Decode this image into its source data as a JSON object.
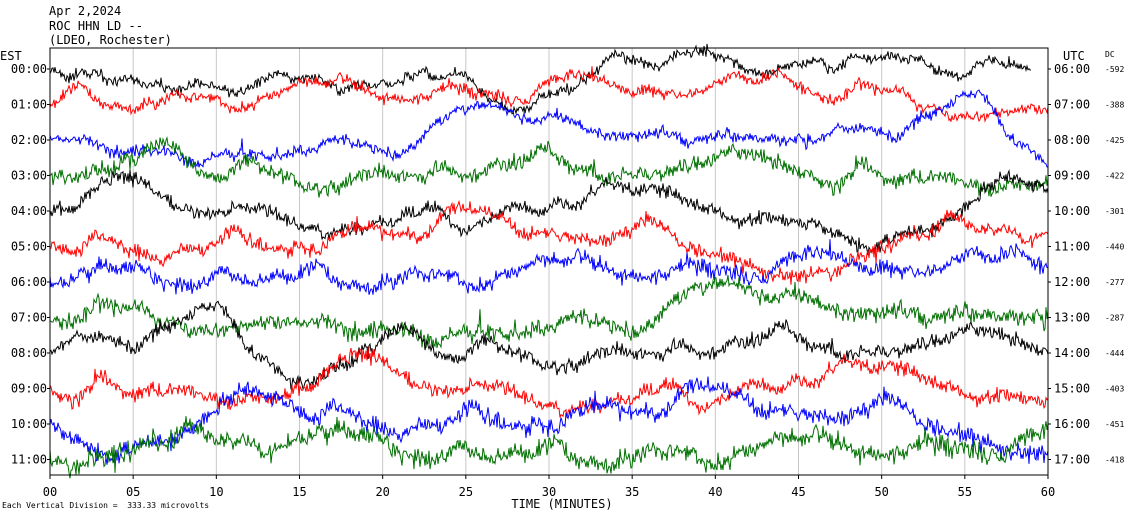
{
  "header": {
    "date": "Apr 2,2024",
    "station": "ROC HHN LD --",
    "network": "(LDEO, Rochester)"
  },
  "footer": {
    "scale_note": "Each Vertical Division =  333.33 microvolts"
  },
  "chart_data": {
    "type": "line",
    "title": "Apr 2,2024",
    "xlabel": "TIME (MINUTES)",
    "left_axis_title": "EST",
    "right_axis_title": "UTC",
    "dc_title": "DC",
    "x_ticks": [
      "00",
      "05",
      "10",
      "15",
      "20",
      "25",
      "30",
      "35",
      "40",
      "45",
      "50",
      "55",
      "60"
    ],
    "xlim": [
      0,
      60
    ],
    "grid": true,
    "colors": [
      "#000000",
      "#ff0000",
      "#0000ff",
      "#007000"
    ],
    "rows": [
      {
        "est": "00:00",
        "utc": "06:00",
        "dc": "-592",
        "color": "#000000",
        "amp": 9,
        "end": 59
      },
      {
        "est": "01:00",
        "utc": "07:00",
        "dc": "-388",
        "color": "#ff0000",
        "amp": 10,
        "end": 60
      },
      {
        "est": "02:00",
        "utc": "08:00",
        "dc": "-425",
        "color": "#0000ff",
        "amp": 10,
        "end": 60
      },
      {
        "est": "03:00",
        "utc": "09:00",
        "dc": "-422",
        "color": "#007000",
        "amp": 13,
        "end": 60
      },
      {
        "est": "04:00",
        "utc": "10:00",
        "dc": "-301",
        "color": "#000000",
        "amp": 12,
        "end": 60
      },
      {
        "est": "05:00",
        "utc": "11:00",
        "dc": "-440",
        "color": "#ff0000",
        "amp": 12,
        "end": 60
      },
      {
        "est": "06:00",
        "utc": "12:00",
        "dc": "-277",
        "color": "#0000ff",
        "amp": 14,
        "end": 60
      },
      {
        "est": "07:00",
        "utc": "13:00",
        "dc": "-287",
        "color": "#007000",
        "amp": 15,
        "end": 60
      },
      {
        "est": "08:00",
        "utc": "14:00",
        "dc": "-444",
        "color": "#000000",
        "amp": 12,
        "end": 60
      },
      {
        "est": "09:00",
        "utc": "15:00",
        "dc": "-403",
        "color": "#ff0000",
        "amp": 13,
        "end": 60
      },
      {
        "est": "10:00",
        "utc": "16:00",
        "dc": "-451",
        "color": "#0000ff",
        "amp": 15,
        "end": 60
      },
      {
        "est": "11:00",
        "utc": "17:00",
        "dc": "-418",
        "color": "#007000",
        "amp": 17,
        "end": 60
      }
    ]
  }
}
